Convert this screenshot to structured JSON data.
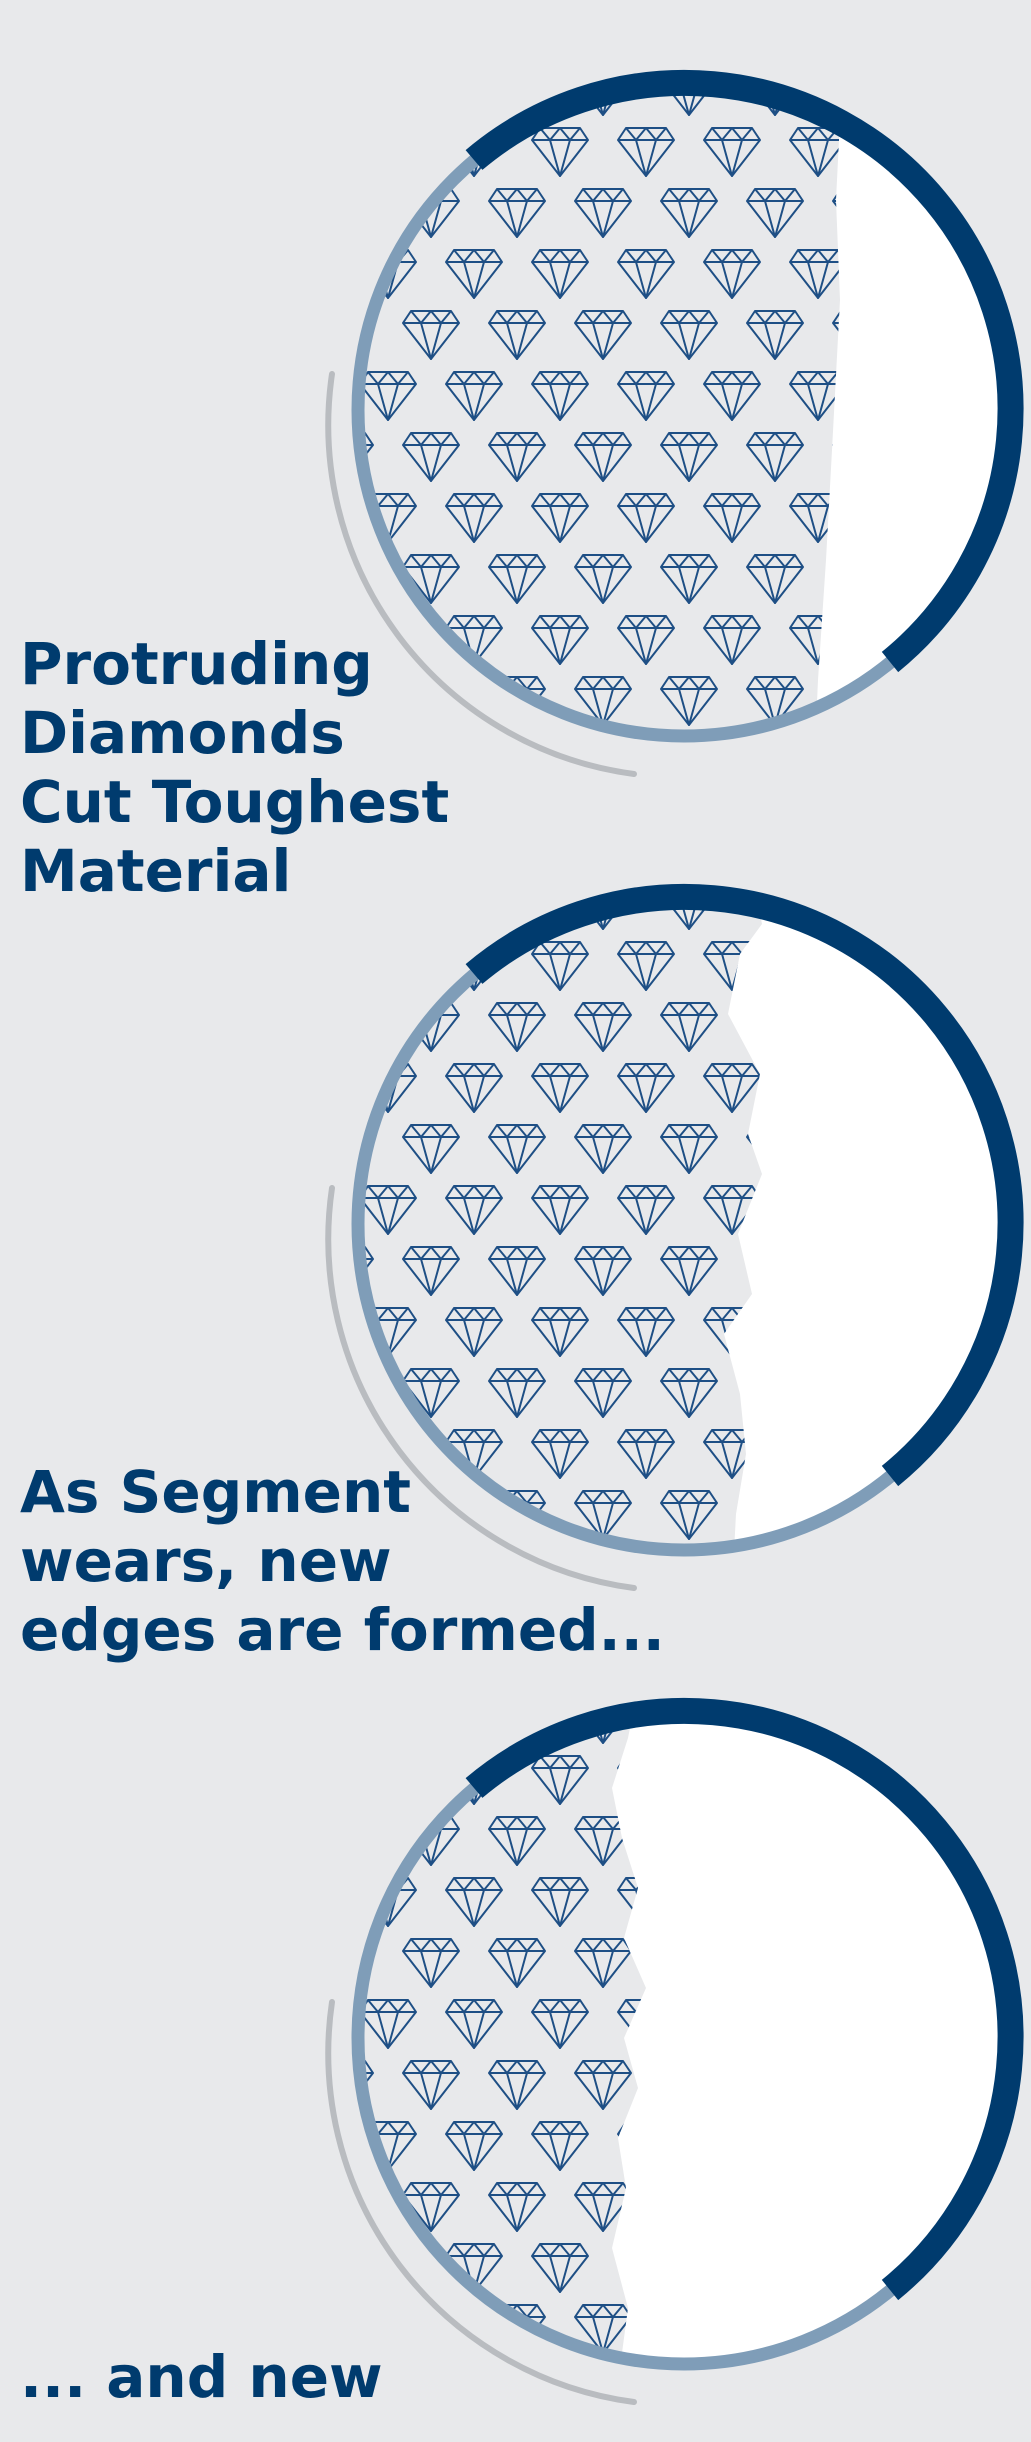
{
  "colors": {
    "background": "#e8e9eb",
    "dark_blue": "#003b6e",
    "light_blue": "#7f9db8",
    "gray": "#b9bcc0",
    "white": "#ffffff",
    "diamond_stroke": "#1e4f85"
  },
  "icons": {
    "diamond": "diamond-icon"
  },
  "stages": [
    {
      "caption": "Protruding\nDiamonds\nCut Toughest\nMaterial",
      "wear_level": 0.25
    },
    {
      "caption": "As Segment\nwears, new\nedges are formed...",
      "wear_level": 0.5
    },
    {
      "caption": "... and new",
      "wear_level": 0.75
    }
  ]
}
